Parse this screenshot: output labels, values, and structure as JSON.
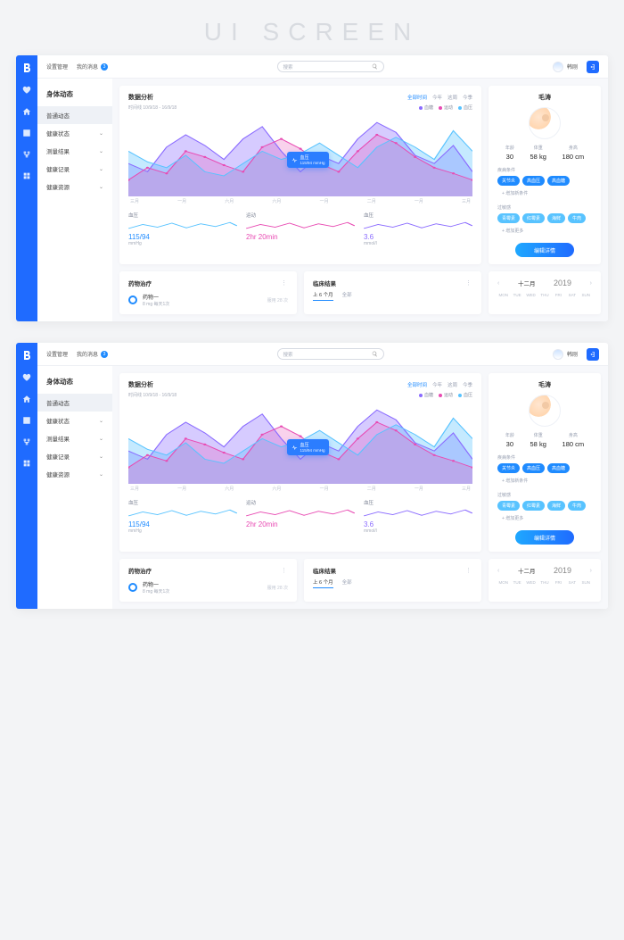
{
  "page_title": "UI SCREEN",
  "colors": {
    "primary": "#1f6bff",
    "accent": "#1f8bff",
    "cyan": "#58c3ff",
    "pink": "#e84bb3",
    "purple": "#8a6bff",
    "card_bg": "#ffffff",
    "page_bg": "#f7f8fb",
    "text_muted": "#9aa2b3"
  },
  "topbar": {
    "link_settings": "设置管理",
    "link_messages": "我的消息",
    "badge": "3",
    "search_placeholder": "搜索",
    "username": "韩刚"
  },
  "side": {
    "title": "身体动态",
    "items": [
      {
        "label": "普通动态",
        "active": true
      },
      {
        "label": "健康状态",
        "active": false
      },
      {
        "label": "测量结果",
        "active": false
      },
      {
        "label": "健康记录",
        "active": false
      },
      {
        "label": "健康资源",
        "active": false
      }
    ]
  },
  "analysis": {
    "title": "数据分析",
    "timeline_label": "时间线 10/9/18 - 16/9/18",
    "filters": {
      "all": "全部时间",
      "y": "今年",
      "w": "这周",
      "s": "今季"
    },
    "legend": {
      "a": "血糖",
      "b": "运动",
      "c": "血压"
    },
    "legend_colors": {
      "a": "#8a6bff",
      "b": "#e84bb3",
      "c": "#58c3ff"
    },
    "series": {
      "a": [
        40,
        30,
        60,
        75,
        62,
        45,
        70,
        85,
        55,
        30,
        50,
        40,
        70,
        90,
        78,
        50,
        40,
        62,
        30
      ],
      "b": [
        20,
        35,
        28,
        55,
        48,
        38,
        30,
        60,
        70,
        58,
        40,
        30,
        55,
        75,
        65,
        48,
        35,
        28,
        20
      ],
      "c": [
        55,
        42,
        35,
        50,
        30,
        25,
        40,
        55,
        45,
        52,
        65,
        50,
        35,
        60,
        72,
        60,
        45,
        80,
        55
      ]
    },
    "x_labels": [
      "三月",
      "一月",
      "六月",
      "六月",
      "一月",
      "二月",
      "一月",
      "三月"
    ],
    "tooltip": {
      "name": "血压",
      "value": "115/94 mmHg"
    },
    "metrics": [
      {
        "label": "血压",
        "value": "115/94",
        "sub": "mmHg",
        "color": "#1f8bff",
        "spark_color": "#58c3ff"
      },
      {
        "label": "运动",
        "value": "2hr 20min",
        "sub": "",
        "color": "#e84bb3",
        "spark_color": "#e84bb3"
      },
      {
        "label": "血压",
        "value": "3.6",
        "sub": "mmol/l",
        "color": "#8a6bff",
        "spark_color": "#8a6bff"
      }
    ]
  },
  "profile": {
    "name": "毛涛",
    "stats": [
      {
        "label": "年龄",
        "value": "30"
      },
      {
        "label": "体重",
        "value": "58 kg"
      },
      {
        "label": "身高",
        "value": "180 cm"
      }
    ],
    "diseases_label": "疾病条件",
    "diseases": [
      "关节炎",
      "高血压",
      "高血糖"
    ],
    "diseases_add": "+ 增加新条件",
    "allergy_label": "过敏感",
    "allergies": [
      "青霉素",
      "红霉素",
      "海鲜",
      "牛肉"
    ],
    "allergies_add": "+ 增加更多",
    "edit_label": "编辑详情"
  },
  "meds": {
    "title": "药物治疗",
    "item_name": "药物一",
    "item_sub": "8 mg 每天1次",
    "item_right": "服用 28 次"
  },
  "clinic": {
    "title": "临床结果",
    "tab_on": "上 6 个月",
    "tab_off": "全部"
  },
  "calendar": {
    "month": "十二月",
    "year": "2019",
    "days": [
      "MON",
      "TUE",
      "WED",
      "THU",
      "FRI",
      "SAT",
      "SUN"
    ]
  }
}
